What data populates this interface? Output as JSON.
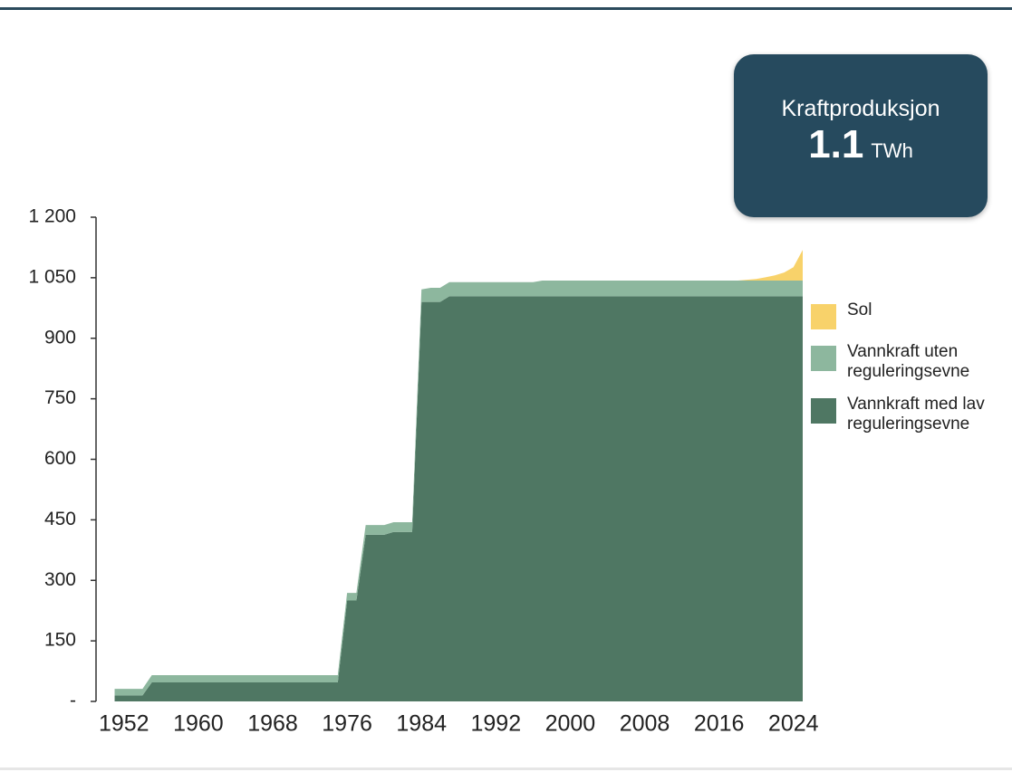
{
  "chart_data": {
    "type": "stacked_area",
    "kpi": {
      "label": "Kraftproduksjon",
      "value": 1.1,
      "unit": "TWh"
    },
    "x": [
      1951,
      1952,
      1953,
      1954,
      1955,
      1956,
      1957,
      1958,
      1959,
      1960,
      1961,
      1962,
      1963,
      1964,
      1965,
      1966,
      1967,
      1968,
      1969,
      1970,
      1971,
      1972,
      1973,
      1974,
      1975,
      1976,
      1977,
      1978,
      1979,
      1980,
      1981,
      1982,
      1983,
      1984,
      1985,
      1986,
      1987,
      1988,
      1989,
      1990,
      1991,
      1992,
      1993,
      1994,
      1995,
      1996,
      1997,
      1998,
      1999,
      2000,
      2001,
      2002,
      2003,
      2004,
      2005,
      2006,
      2007,
      2008,
      2009,
      2010,
      2011,
      2012,
      2013,
      2014,
      2015,
      2016,
      2017,
      2018,
      2019,
      2020,
      2021,
      2022,
      2023,
      2024,
      2025
    ],
    "series": [
      {
        "name": "Sol",
        "color": "#f8d26a",
        "values": [
          0,
          0,
          0,
          0,
          0,
          0,
          0,
          0,
          0,
          0,
          0,
          0,
          0,
          0,
          0,
          0,
          0,
          0,
          0,
          0,
          0,
          0,
          0,
          0,
          0,
          0,
          0,
          0,
          0,
          0,
          0,
          0,
          0,
          0,
          0,
          0,
          0,
          0,
          0,
          0,
          0,
          0,
          0,
          0,
          0,
          0,
          0,
          0,
          0,
          0,
          0,
          0,
          0,
          0,
          0,
          0,
          0,
          0,
          0,
          0,
          0,
          0,
          0,
          0,
          0,
          0,
          0,
          0,
          2,
          4,
          8,
          13,
          20,
          33,
          76
        ]
      },
      {
        "name": "Vannkraft uten reguleringsevne",
        "color": "#8db79e",
        "values": [
          16,
          16,
          16,
          16,
          18,
          18,
          18,
          18,
          18,
          18,
          18,
          18,
          18,
          18,
          18,
          18,
          18,
          18,
          18,
          18,
          18,
          18,
          18,
          18,
          18,
          19,
          19,
          24,
          24,
          24,
          24,
          24,
          24,
          31,
          35,
          35,
          35,
          35,
          35,
          35,
          35,
          35,
          35,
          35,
          35,
          35,
          39,
          39,
          39,
          39,
          39,
          39,
          39,
          39,
          39,
          39,
          39,
          39,
          39,
          39,
          39,
          39,
          39,
          39,
          39,
          39,
          39,
          39,
          39,
          39,
          39,
          39,
          39,
          39,
          39
        ]
      },
      {
        "name": "Vannkraft med lav reguleringsevne",
        "color": "#4f7763",
        "values": [
          15,
          15,
          15,
          15,
          47,
          47,
          47,
          47,
          47,
          47,
          47,
          47,
          47,
          47,
          47,
          47,
          47,
          47,
          47,
          47,
          47,
          47,
          47,
          47,
          47,
          250,
          250,
          413,
          413,
          413,
          420,
          420,
          420,
          990,
          990,
          990,
          1004,
          1004,
          1004,
          1004,
          1004,
          1004,
          1004,
          1004,
          1004,
          1004,
          1004,
          1004,
          1004,
          1004,
          1004,
          1004,
          1004,
          1004,
          1004,
          1004,
          1004,
          1004,
          1004,
          1004,
          1004,
          1004,
          1004,
          1004,
          1004,
          1004,
          1004,
          1004,
          1004,
          1004,
          1004,
          1004,
          1004,
          1004,
          1004
        ]
      }
    ],
    "xlim": [
      1949,
      2025
    ],
    "xticks": [
      1952,
      1960,
      1968,
      1976,
      1984,
      1992,
      2000,
      2008,
      2016,
      2024
    ],
    "ylim": [
      0,
      1200
    ],
    "yticks": [
      {
        "value": 0,
        "label": "-"
      },
      150,
      300,
      450,
      600,
      750,
      900,
      {
        "value": 1050,
        "label": "1 050"
      },
      {
        "value": 1200,
        "label": "1 200"
      }
    ]
  }
}
